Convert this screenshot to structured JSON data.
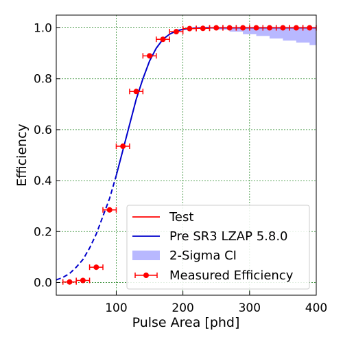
{
  "chart_data": {
    "type": "line",
    "title": "",
    "xlabel": "Pulse Area [phd]",
    "ylabel": "Efficiency",
    "xlim": [
      10,
      400
    ],
    "ylim": [
      -0.05,
      1.05
    ],
    "xticks": [
      100,
      200,
      300,
      400
    ],
    "yticks": [
      0.0,
      0.2,
      0.4,
      0.6,
      0.8,
      1.0
    ],
    "xtick_labels": [
      "100",
      "200",
      "300",
      "400"
    ],
    "ytick_labels": [
      "0.0",
      "0.2",
      "0.4",
      "0.6",
      "0.8",
      "1.0"
    ],
    "grid": true,
    "legend_position": "bottom-right",
    "legend": [
      "Test",
      "Pre SR3 LZAP 5.8.0",
      "2-Sigma CI",
      "Measured Efficiency"
    ],
    "colors": {
      "test": "#ff0000",
      "fit": "#0000cc",
      "ci": "#b8b8ff",
      "measured": "#ff0000",
      "grid": "#2e8b2e"
    },
    "fit_curve": {
      "x": [
        10,
        20,
        30,
        40,
        50,
        60,
        70,
        80,
        90,
        100,
        110,
        120,
        130,
        140,
        150,
        160,
        170,
        180,
        190,
        200,
        210,
        220,
        230,
        240,
        260,
        280,
        300,
        320,
        340,
        360,
        380,
        400
      ],
      "y": [
        0.01,
        0.02,
        0.035,
        0.06,
        0.09,
        0.135,
        0.19,
        0.26,
        0.33,
        0.42,
        0.52,
        0.62,
        0.72,
        0.8,
        0.87,
        0.92,
        0.955,
        0.975,
        0.988,
        0.994,
        0.997,
        0.999,
        1.0,
        1.0,
        1.0,
        1.0,
        1.0,
        1.0,
        1.0,
        1.0,
        1.0,
        1.0
      ],
      "dashed_below_x": 100
    },
    "ci_band": {
      "x": [
        230,
        250,
        270,
        290,
        310,
        330,
        350,
        370,
        390,
        400
      ],
      "lower": [
        0.998,
        0.993,
        0.985,
        0.975,
        0.968,
        0.958,
        0.95,
        0.942,
        0.932,
        0.928
      ],
      "upper": [
        1.0,
        1.0,
        1.0,
        1.0,
        1.0,
        1.0,
        1.0,
        1.0,
        1.0,
        1.0
      ]
    },
    "measured": {
      "x": [
        30,
        50,
        70,
        90,
        110,
        130,
        150,
        170,
        190,
        210,
        230,
        250,
        270,
        290,
        310,
        330,
        350,
        370,
        390
      ],
      "y": [
        0.002,
        0.008,
        0.06,
        0.285,
        0.535,
        0.75,
        0.89,
        0.955,
        0.985,
        0.997,
        0.998,
        1.0,
        1.0,
        1.0,
        1.0,
        1.0,
        1.0,
        1.0,
        1.0
      ],
      "xerr": 10
    }
  }
}
